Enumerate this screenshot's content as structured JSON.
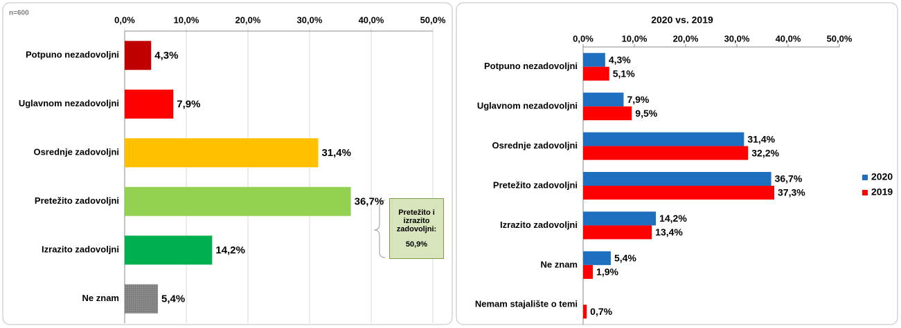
{
  "chart_data": [
    {
      "type": "bar",
      "annotations": [
        "n=600",
        "Pretežito i izrazito zadovoljni:",
        "50,9%"
      ],
      "categories": [
        "Potpuno nezadovoljni",
        "Uglavnom nezadovoljni",
        "Osrednje zadovoljni",
        "Pretežito zadovoljni",
        "Izrazito zadovoljni",
        "Ne znam"
      ],
      "values": [
        4.3,
        7.9,
        31.4,
        36.7,
        14.2,
        5.4
      ],
      "value_labels": [
        "4,3%",
        "7,9%",
        "31,4%",
        "36,7%",
        "14,2%",
        "5,4%"
      ],
      "colors": [
        "#c00000",
        "#ff0000",
        "#ffc000",
        "#92d050",
        "#00b050",
        "url(#hatch)"
      ],
      "xlim": [
        0,
        50
      ],
      "xticks": [
        {
          "value": 0,
          "label": "0,0%"
        },
        {
          "value": 10,
          "label": "10,0%"
        },
        {
          "value": 20,
          "label": "20,0%"
        },
        {
          "value": 30,
          "label": "30,0%"
        },
        {
          "value": 40,
          "label": "40,0%"
        },
        {
          "value": 50,
          "label": "50,0%"
        }
      ],
      "grid": true
    },
    {
      "type": "bar",
      "title": "2020 vs. 2019",
      "categories": [
        "Potpuno nezadovoljni",
        "Uglavnom nezadovoljni",
        "Osrednje zadovoljni",
        "Pretežito zadovoljni",
        "Izrazito zadovoljni",
        "Ne znam",
        "Nemam stajalište o temi"
      ],
      "series": [
        {
          "name": "2020",
          "color": "#1f6fc1",
          "values": [
            4.3,
            7.9,
            31.4,
            36.7,
            14.2,
            5.4,
            null
          ],
          "value_labels": [
            "4,3%",
            "7,9%",
            "31,4%",
            "36,7%",
            "14,2%",
            "5,4%",
            null
          ]
        },
        {
          "name": "2019",
          "color": "#ff0000",
          "values": [
            5.1,
            9.5,
            32.2,
            37.3,
            13.4,
            1.9,
            0.7
          ],
          "value_labels": [
            "5,1%",
            "9,5%",
            "32,2%",
            "37,3%",
            "13,4%",
            "1,9%",
            "0,7%"
          ]
        }
      ],
      "xlim": [
        0,
        50
      ],
      "xticks": [
        {
          "value": 0,
          "label": "0,0%"
        },
        {
          "value": 10,
          "label": "10,0%"
        },
        {
          "value": 20,
          "label": "20,0%"
        },
        {
          "value": 30,
          "label": "30,0%"
        },
        {
          "value": 40,
          "label": "40,0%"
        },
        {
          "value": 50,
          "label": "50,0%"
        }
      ],
      "grid": false,
      "legend": "right"
    }
  ]
}
